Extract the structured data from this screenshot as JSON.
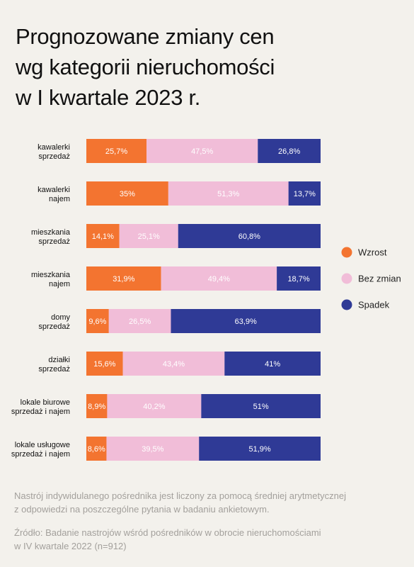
{
  "title_lines": [
    "Prognozowane zmiany cen",
    "wg kategorii nieruchomości",
    "w I kwartale 2023 r."
  ],
  "colors": {
    "Wzrost": "#f37430",
    "Bez zmian": "#f1bdd8",
    "Spadek": "#2f3a96",
    "background": "#f3f1ec"
  },
  "chart_data": {
    "type": "bar",
    "orientation": "horizontal",
    "stacked": true,
    "categories": [
      [
        "kawalerki",
        "sprzedaż"
      ],
      [
        "kawalerki",
        "najem"
      ],
      [
        "mieszkania",
        "sprzedaż"
      ],
      [
        "mieszkania",
        "najem"
      ],
      [
        "domy",
        "sprzedaż"
      ],
      [
        "działki",
        "sprzedaż"
      ],
      [
        "lokale biurowe",
        "sprzedaż i najem"
      ],
      [
        "lokale usługowe",
        "sprzedaż i najem"
      ]
    ],
    "series": [
      {
        "name": "Wzrost",
        "values": [
          25.7,
          35,
          14.1,
          31.9,
          9.6,
          15.6,
          8.9,
          8.6
        ],
        "labels": [
          "25,7%",
          "35%",
          "14,1%",
          "31,9%",
          "9,6%",
          "15,6%",
          "8,9%",
          "8,6%"
        ]
      },
      {
        "name": "Bez zmian",
        "values": [
          47.5,
          51.3,
          25.1,
          49.4,
          26.5,
          43.4,
          40.2,
          39.5
        ],
        "labels": [
          "47,5%",
          "51,3%",
          "25,1%",
          "49,4%",
          "26,5%",
          "43,4%",
          "40,2%",
          "39,5%"
        ]
      },
      {
        "name": "Spadek",
        "values": [
          26.8,
          13.7,
          60.8,
          18.7,
          63.9,
          41,
          51,
          51.9
        ],
        "labels": [
          "26,8%",
          "13,7%",
          "60,8%",
          "18,7%",
          "63,9%",
          "41%",
          "51%",
          "51,9%"
        ]
      }
    ],
    "legend": {
      "position": "right",
      "items": [
        "Wzrost",
        "Bez zmian",
        "Spadek"
      ]
    }
  },
  "footnotes": {
    "note": [
      "Nastrój indywidulanego pośrednika jest liczony za pomocą średniej arytmetycznej",
      "z odpowiedzi na poszczególne pytania w badaniu ankietowym."
    ],
    "source": [
      "Źródło: Badanie nastrojów wśród pośredników w obrocie nieruchomościami",
      "w IV kwartale 2022 (n=912)"
    ]
  }
}
